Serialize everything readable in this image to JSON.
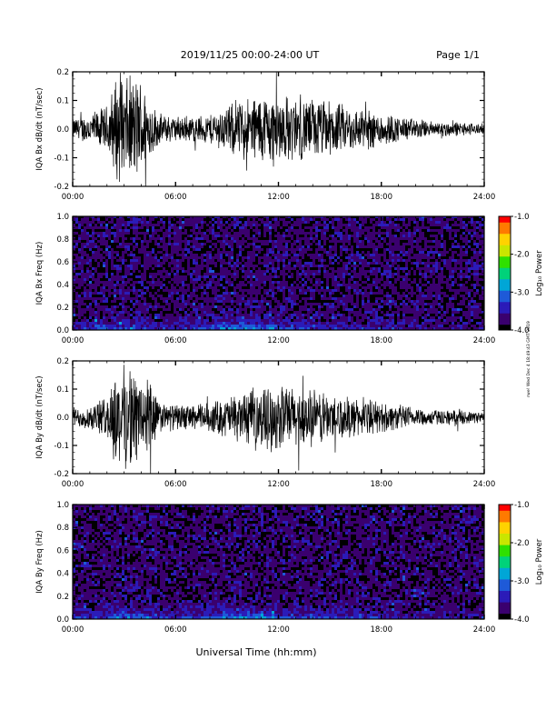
{
  "header": {
    "title": "2019/11/25  00:00-24:00 UT",
    "page": "Page 1/1"
  },
  "footer": {
    "xlabel": "Universal Time (hh:mm)",
    "side_note": "rwe! Wed Dec 4 18:49:43 GMT 2019"
  },
  "colors": {
    "trace": "#000000",
    "frame": "#000000",
    "colormap": [
      "#000000",
      "#3a006e",
      "#2b1bb8",
      "#1e5ad8",
      "#00a6d6",
      "#00d27a",
      "#2fe000",
      "#c9e600",
      "#ffd200",
      "#ff7a00",
      "#ff0000"
    ]
  },
  "chart_data": [
    {
      "type": "line",
      "title": "",
      "ylabel": "IQA Bx dB/dt (nT/sec)",
      "xlabel": "",
      "xlim": [
        "00:00",
        "24:00"
      ],
      "ylim": [
        -0.2,
        0.2
      ],
      "xticks": [
        "00:00",
        "06:00",
        "12:00",
        "18:00",
        "24:00"
      ],
      "yticks": [
        "-0.2",
        "-0.1",
        "0.0",
        "0.1",
        "0.2"
      ],
      "series": [
        {
          "x_hours": [
            0,
            1,
            2,
            2.5,
            3,
            3.5,
            4,
            4.5,
            5,
            6,
            7,
            8,
            9,
            10,
            11,
            12,
            13,
            14,
            15,
            16,
            17,
            18,
            19,
            20,
            21,
            22,
            23,
            24
          ],
          "envelope": [
            0.04,
            0.06,
            0.09,
            0.2,
            0.2,
            0.2,
            0.2,
            0.12,
            0.06,
            0.05,
            0.05,
            0.06,
            0.09,
            0.12,
            0.14,
            0.14,
            0.12,
            0.12,
            0.11,
            0.09,
            0.08,
            0.07,
            0.05,
            0.04,
            0.03,
            0.03,
            0.025,
            0.02
          ]
        }
      ],
      "grid": false
    },
    {
      "type": "heatmap",
      "title": "",
      "ylabel": "IQA Bx Freq (Hz)",
      "xlabel": "",
      "xlim": [
        "00:00",
        "24:00"
      ],
      "ylim": [
        0.0,
        1.0
      ],
      "xticks": [
        "00:00",
        "06:00",
        "12:00",
        "18:00",
        "24:00"
      ],
      "yticks": [
        "0.0",
        "0.2",
        "0.4",
        "0.6",
        "0.8",
        "1.0"
      ],
      "colorbar": {
        "label": "Log₁₀ Power",
        "range": [
          -4.0,
          -1.0
        ],
        "ticks": [
          "-1.0",
          "-2.0",
          "-3.0",
          "-4.0"
        ]
      },
      "low_freq_power_log10": {
        "x_hours": [
          0,
          2,
          2.5,
          3,
          3.5,
          4,
          5,
          6,
          7,
          8,
          9,
          10,
          11,
          12,
          13,
          14,
          15,
          16,
          18,
          20,
          22,
          24
        ],
        "values": [
          -3.3,
          -3.2,
          -3.0,
          -3.2,
          -3.0,
          -3.1,
          -3.3,
          -3.4,
          -3.3,
          -3.1,
          -2.9,
          -2.8,
          -2.9,
          -3.0,
          -3.2,
          -3.3,
          -3.2,
          -3.3,
          -3.4,
          -3.5,
          -3.6,
          -3.7
        ]
      }
    },
    {
      "type": "line",
      "title": "",
      "ylabel": "IQA By dB/dt (nT/sec)",
      "xlabel": "",
      "xlim": [
        "00:00",
        "24:00"
      ],
      "ylim": [
        -0.2,
        0.2
      ],
      "xticks": [
        "00:00",
        "06:00",
        "12:00",
        "18:00",
        "24:00"
      ],
      "yticks": [
        "-0.2",
        "-0.1",
        "0.0",
        "0.1",
        "0.2"
      ],
      "series": [
        {
          "x_hours": [
            0,
            1,
            2,
            2.5,
            3,
            3.5,
            4,
            4.5,
            5,
            6,
            7,
            8,
            9,
            10,
            11,
            12,
            13,
            14,
            15,
            16,
            17,
            18,
            19,
            20,
            21,
            22,
            23,
            24
          ],
          "envelope": [
            0.04,
            0.05,
            0.08,
            0.2,
            0.2,
            0.2,
            0.14,
            0.2,
            0.06,
            0.05,
            0.05,
            0.06,
            0.08,
            0.1,
            0.12,
            0.13,
            0.12,
            0.11,
            0.1,
            0.08,
            0.07,
            0.06,
            0.05,
            0.04,
            0.03,
            0.03,
            0.025,
            0.02
          ]
        }
      ],
      "grid": false
    },
    {
      "type": "heatmap",
      "title": "",
      "ylabel": "IQA By Freq (Hz)",
      "xlabel": "",
      "xlim": [
        "00:00",
        "24:00"
      ],
      "ylim": [
        0.0,
        1.0
      ],
      "xticks": [
        "00:00",
        "06:00",
        "12:00",
        "18:00",
        "24:00"
      ],
      "yticks": [
        "0.0",
        "0.2",
        "0.4",
        "0.6",
        "0.8",
        "1.0"
      ],
      "colorbar": {
        "label": "Log₁₀ Power",
        "range": [
          -4.0,
          -1.0
        ],
        "ticks": [
          "-1.0",
          "-2.0",
          "-3.0",
          "-4.0"
        ]
      },
      "low_freq_power_log10": {
        "x_hours": [
          0,
          2,
          2.5,
          3,
          3.5,
          4,
          5,
          6,
          7,
          8,
          9,
          10,
          11,
          12,
          13,
          14,
          15,
          16,
          18,
          20,
          22,
          24
        ],
        "values": [
          -3.3,
          -3.2,
          -2.9,
          -3.1,
          -2.9,
          -3.0,
          -3.2,
          -3.3,
          -3.2,
          -3.0,
          -2.8,
          -2.7,
          -2.8,
          -2.9,
          -3.1,
          -3.2,
          -3.1,
          -3.2,
          -3.4,
          -3.5,
          -3.6,
          -3.7
        ]
      }
    }
  ]
}
